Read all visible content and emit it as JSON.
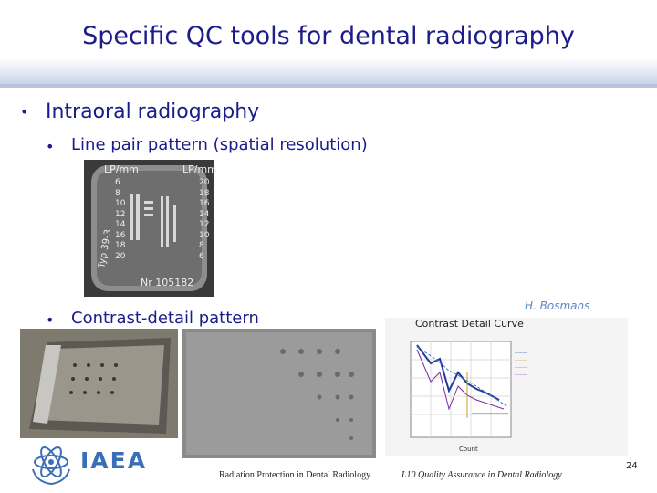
{
  "header": {
    "title": "Specific QC tools for dental radiography"
  },
  "bullets": [
    {
      "text": "Intraoral radiography",
      "items": [
        {
          "text": "Line pair pattern (spatial resolution)"
        },
        {
          "text": "Contrast-detail pattern"
        }
      ]
    }
  ],
  "credit": "H. Bosmans",
  "line_pair_image": {
    "left_header": "LP/mm",
    "right_header": "LP/mm",
    "left_values": [
      "6",
      "8",
      "10",
      "12",
      "14",
      "16",
      "18",
      "20"
    ],
    "right_values": [
      "20",
      "18",
      "16",
      "14",
      "12",
      "10",
      "8",
      "6"
    ],
    "type_label": "Typ 39-3",
    "serial": "Nr 105182"
  },
  "chart_image": {
    "title": "Contrast Detail Curve",
    "x_label": "Count"
  },
  "footer": {
    "logo": "IAEA",
    "left": "Radiation Protection in Dental Radiology",
    "right": "L10 Quality Assurance in Dental Radiology",
    "page": "24"
  }
}
